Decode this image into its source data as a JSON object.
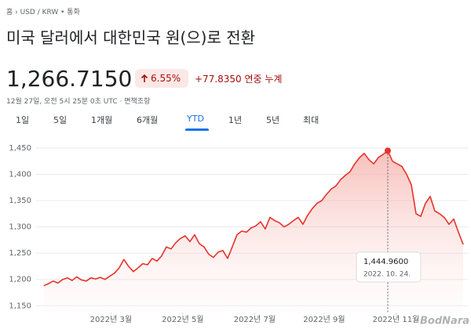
{
  "breadcrumb": "홈 › USD / KRW • 통화",
  "title": "미국 달러에서 대한민국 원(으)로 전환",
  "price": "1,266.7150",
  "change_percent": "6.55%",
  "change": "+77.8350 연중 누계",
  "timestamp": "12월 27일, 오전 5시 25분 0초 UTC · 면책조항",
  "tabs": [
    "1일",
    "5일",
    "1개월",
    "6개월",
    "YTD",
    "1년",
    "5년",
    "최대"
  ],
  "selected_tab": 4,
  "watermark": "BodNara",
  "chart_data": {
    "type": "line",
    "color": "#e8312a",
    "values": [
      1188,
      1192,
      1197,
      1193,
      1200,
      1203,
      1198,
      1205,
      1199,
      1197,
      1203,
      1201,
      1204,
      1200,
      1206,
      1212,
      1222,
      1238,
      1225,
      1215,
      1222,
      1230,
      1228,
      1240,
      1235,
      1245,
      1262,
      1258,
      1270,
      1278,
      1283,
      1272,
      1285,
      1268,
      1262,
      1248,
      1242,
      1252,
      1255,
      1240,
      1262,
      1285,
      1292,
      1290,
      1298,
      1302,
      1310,
      1296,
      1318,
      1312,
      1308,
      1300,
      1305,
      1312,
      1318,
      1305,
      1322,
      1335,
      1345,
      1350,
      1362,
      1372,
      1378,
      1390,
      1398,
      1405,
      1420,
      1432,
      1440,
      1428,
      1420,
      1432,
      1438,
      1444.96,
      1425,
      1420,
      1415,
      1400,
      1380,
      1325,
      1320,
      1345,
      1358,
      1330,
      1325,
      1318,
      1305,
      1315,
      1290,
      1266.715
    ],
    "xlim": [
      -1.3,
      89
    ],
    "xticks": [
      {
        "value": 14.25,
        "label": "2022년 3월"
      },
      {
        "value": 29.5,
        "label": "2022년 5월"
      },
      {
        "value": 44.75,
        "label": "2022년 7월"
      },
      {
        "value": 59.5,
        "label": "2022년 9월"
      },
      {
        "value": 74.75,
        "label": "2022년 11월"
      }
    ],
    "ylim": [
      1137,
      1462
    ],
    "yticks": [
      {
        "value": 1150,
        "label": "1,150"
      },
      {
        "value": 1200,
        "label": "1,200"
      },
      {
        "value": 1250,
        "label": "1,250"
      },
      {
        "value": 1300,
        "label": "1,300"
      },
      {
        "value": 1350,
        "label": "1,350"
      },
      {
        "value": 1400,
        "label": "1,400"
      },
      {
        "value": 1450,
        "label": "1,450"
      }
    ],
    "grid": true,
    "tooltip": {
      "value": 1444.96,
      "label": "1,444.9600",
      "date": "2022. 10. 24."
    }
  }
}
